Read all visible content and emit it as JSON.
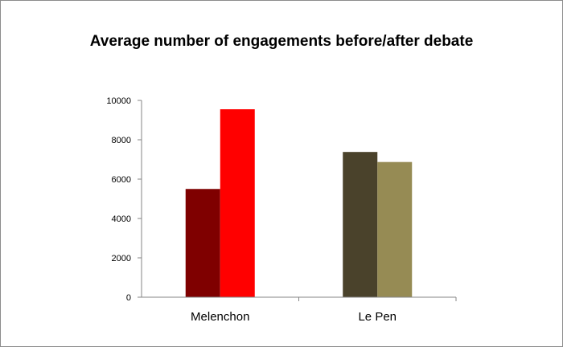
{
  "chart_data": {
    "type": "bar",
    "title": "Average number of engagements before/after debate",
    "xlabel": "",
    "ylabel": "",
    "categories": [
      "Melenchon",
      "Le Pen"
    ],
    "ylim": [
      0,
      10000
    ],
    "yticks": [
      "0",
      "2000",
      "4000",
      "6000",
      "8000",
      "10000"
    ],
    "grid": false,
    "legend": "none",
    "bars": [
      {
        "category": "Melenchon",
        "value": 5500,
        "color": "#7f0000"
      },
      {
        "category": "Melenchon",
        "value": 9550,
        "color": "#ff0000"
      },
      {
        "category": "Le Pen",
        "value": 7380,
        "color": "#4a422b"
      },
      {
        "category": "Le Pen",
        "value": 6870,
        "color": "#968b54"
      }
    ]
  }
}
